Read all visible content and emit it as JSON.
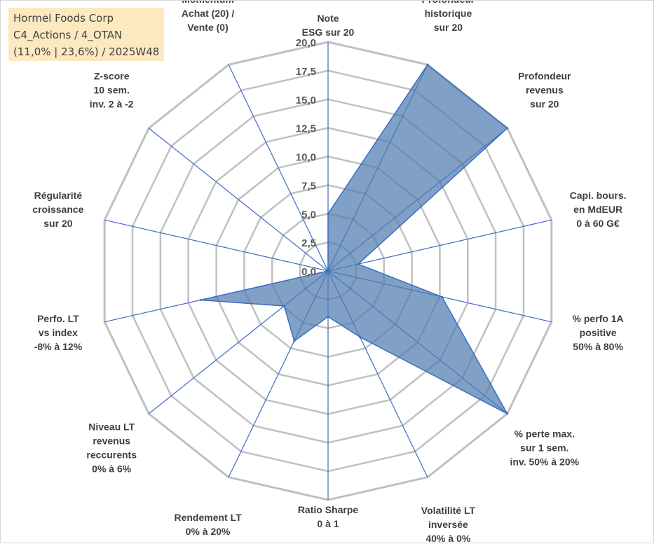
{
  "info": {
    "line1": "Hormel Foods Corp",
    "line2": "C4_Actions / 4_OTAN",
    "line3": "(11,0% | 23,6%) / 2025W48"
  },
  "colors": {
    "fill": "#4f7bb0",
    "fill_opacity": 0.72,
    "stroke": "#3c6dc4",
    "grid": "#c0c0c0",
    "spoke": "#3c6dc4"
  },
  "chart_data": {
    "type": "radar",
    "title": "",
    "rmin": 0,
    "rmax": 20,
    "ticks": [
      "0,0",
      "2,5",
      "5,0",
      "7,5",
      "10,0",
      "12,5",
      "15,0",
      "17,5",
      "20,0"
    ],
    "categories": [
      [
        "Note",
        "ESG sur 20"
      ],
      [
        "Profondeur",
        "historique",
        "sur 20"
      ],
      [
        "Profondeur",
        "revenus",
        "sur 20"
      ],
      [
        "Capi. bours.",
        "en MdEUR",
        "0 à 60 G€"
      ],
      [
        "% perfo 1A",
        "positive",
        "50% à 80%"
      ],
      [
        "% perte max.",
        "sur 1 sem.",
        "inv. 50% à 20%"
      ],
      [
        "Volatilité LT",
        "inversée",
        "40% à 0%"
      ],
      [
        "Ratio Sharpe",
        "0 à 1"
      ],
      [
        "Rendement LT",
        "0% à 20%"
      ],
      [
        "Niveau LT",
        "revenus",
        "reccurents",
        "0% à 6%"
      ],
      [
        "Perfo. LT",
        "vs index",
        "-8% à 12%"
      ],
      [
        "Régularité",
        "croissance",
        "sur 20"
      ],
      [
        "Z-score",
        "10 sem.",
        "inv. 2 à -2"
      ],
      [
        "Momentum",
        "Achat (20) /",
        "Vente (0)"
      ]
    ],
    "series": [
      {
        "values": [
          5.0,
          20.0,
          20.0,
          2.7,
          10.2,
          20.0,
          6.4,
          4.0,
          6.8,
          4.9,
          11.4,
          0.0,
          0.0,
          0.0
        ]
      }
    ],
    "grid": true,
    "legend": "none"
  }
}
